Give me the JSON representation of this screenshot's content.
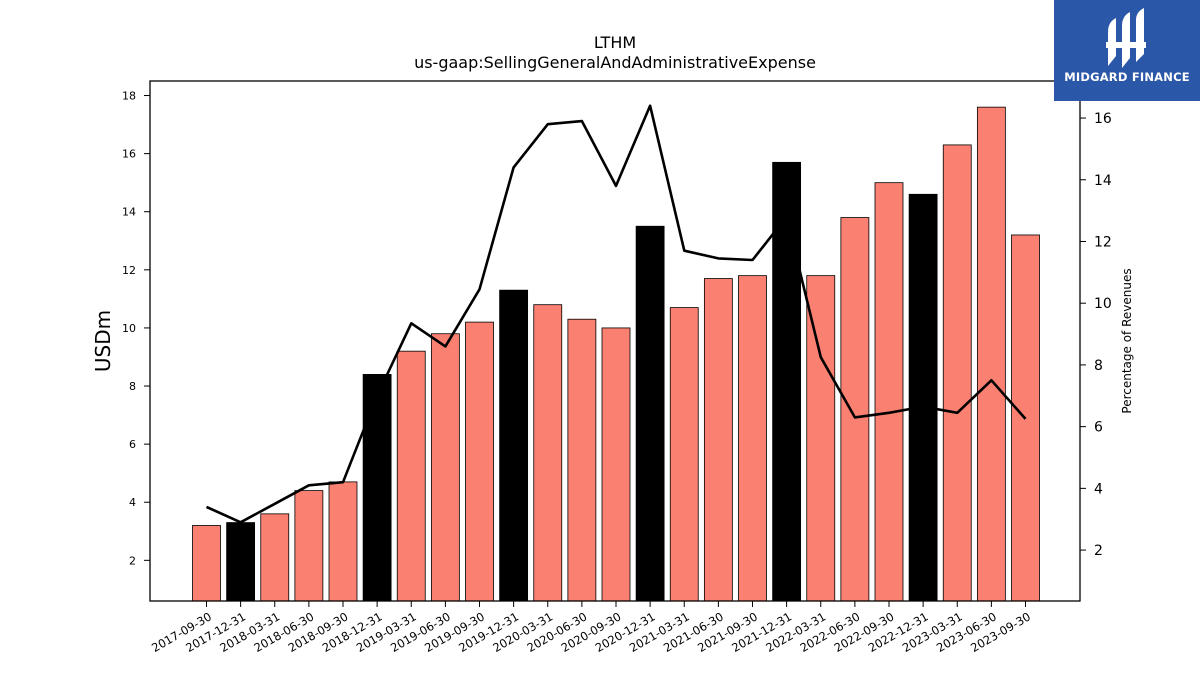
{
  "brand": {
    "name": "MIDGARD FINANCE",
    "color": "#2b57a8"
  },
  "chart_data": {
    "type": "bar",
    "title": "LTHM",
    "subtitle": "us-gaap:SellingGeneralAndAdministrativeExpense",
    "ylabel": "USDm",
    "y2label": "Percentage of Revenues",
    "ylim": [
      0.6,
      18.5
    ],
    "y2lim": [
      0.35,
      17.2
    ],
    "yticks": [
      2,
      4,
      6,
      8,
      10,
      12,
      14,
      16,
      18
    ],
    "y2ticks": [
      2,
      4,
      6,
      8,
      10,
      12,
      14,
      16
    ],
    "categories": [
      "2017-09-30",
      "2017-12-31",
      "2018-03-31",
      "2018-06-30",
      "2018-09-30",
      "2018-12-31",
      "2019-03-31",
      "2019-06-30",
      "2019-09-30",
      "2019-12-31",
      "2020-03-31",
      "2020-06-30",
      "2020-09-30",
      "2020-12-31",
      "2021-03-31",
      "2021-06-30",
      "2021-09-30",
      "2021-12-31",
      "2022-03-31",
      "2022-06-30",
      "2022-09-30",
      "2022-12-31",
      "2023-03-31",
      "2023-06-30",
      "2023-09-30"
    ],
    "series": [
      {
        "type": "bar",
        "axis": "left",
        "values": [
          3.2,
          3.3,
          3.6,
          4.4,
          4.7,
          8.4,
          9.2,
          9.8,
          10.2,
          11.3,
          10.8,
          10.3,
          10.0,
          13.5,
          10.7,
          11.7,
          11.8,
          15.7,
          11.8,
          13.8,
          15.0,
          14.6,
          16.3,
          17.6,
          13.2
        ],
        "highlight": [
          false,
          true,
          false,
          false,
          false,
          true,
          false,
          false,
          false,
          true,
          false,
          false,
          false,
          true,
          false,
          false,
          false,
          true,
          false,
          false,
          false,
          true,
          false,
          false,
          false
        ],
        "color": "#fa8072",
        "highlight_color": "#000000"
      },
      {
        "type": "line",
        "axis": "right",
        "values": [
          3.4,
          2.9,
          3.5,
          4.1,
          4.2,
          7.0,
          9.35,
          8.6,
          10.45,
          14.4,
          15.8,
          15.9,
          13.8,
          16.4,
          11.7,
          11.45,
          11.4,
          12.8,
          8.25,
          6.3,
          6.45,
          6.65,
          6.45,
          7.5,
          6.25
        ],
        "color": "#000000"
      }
    ],
    "grid": false,
    "legend": "none"
  }
}
